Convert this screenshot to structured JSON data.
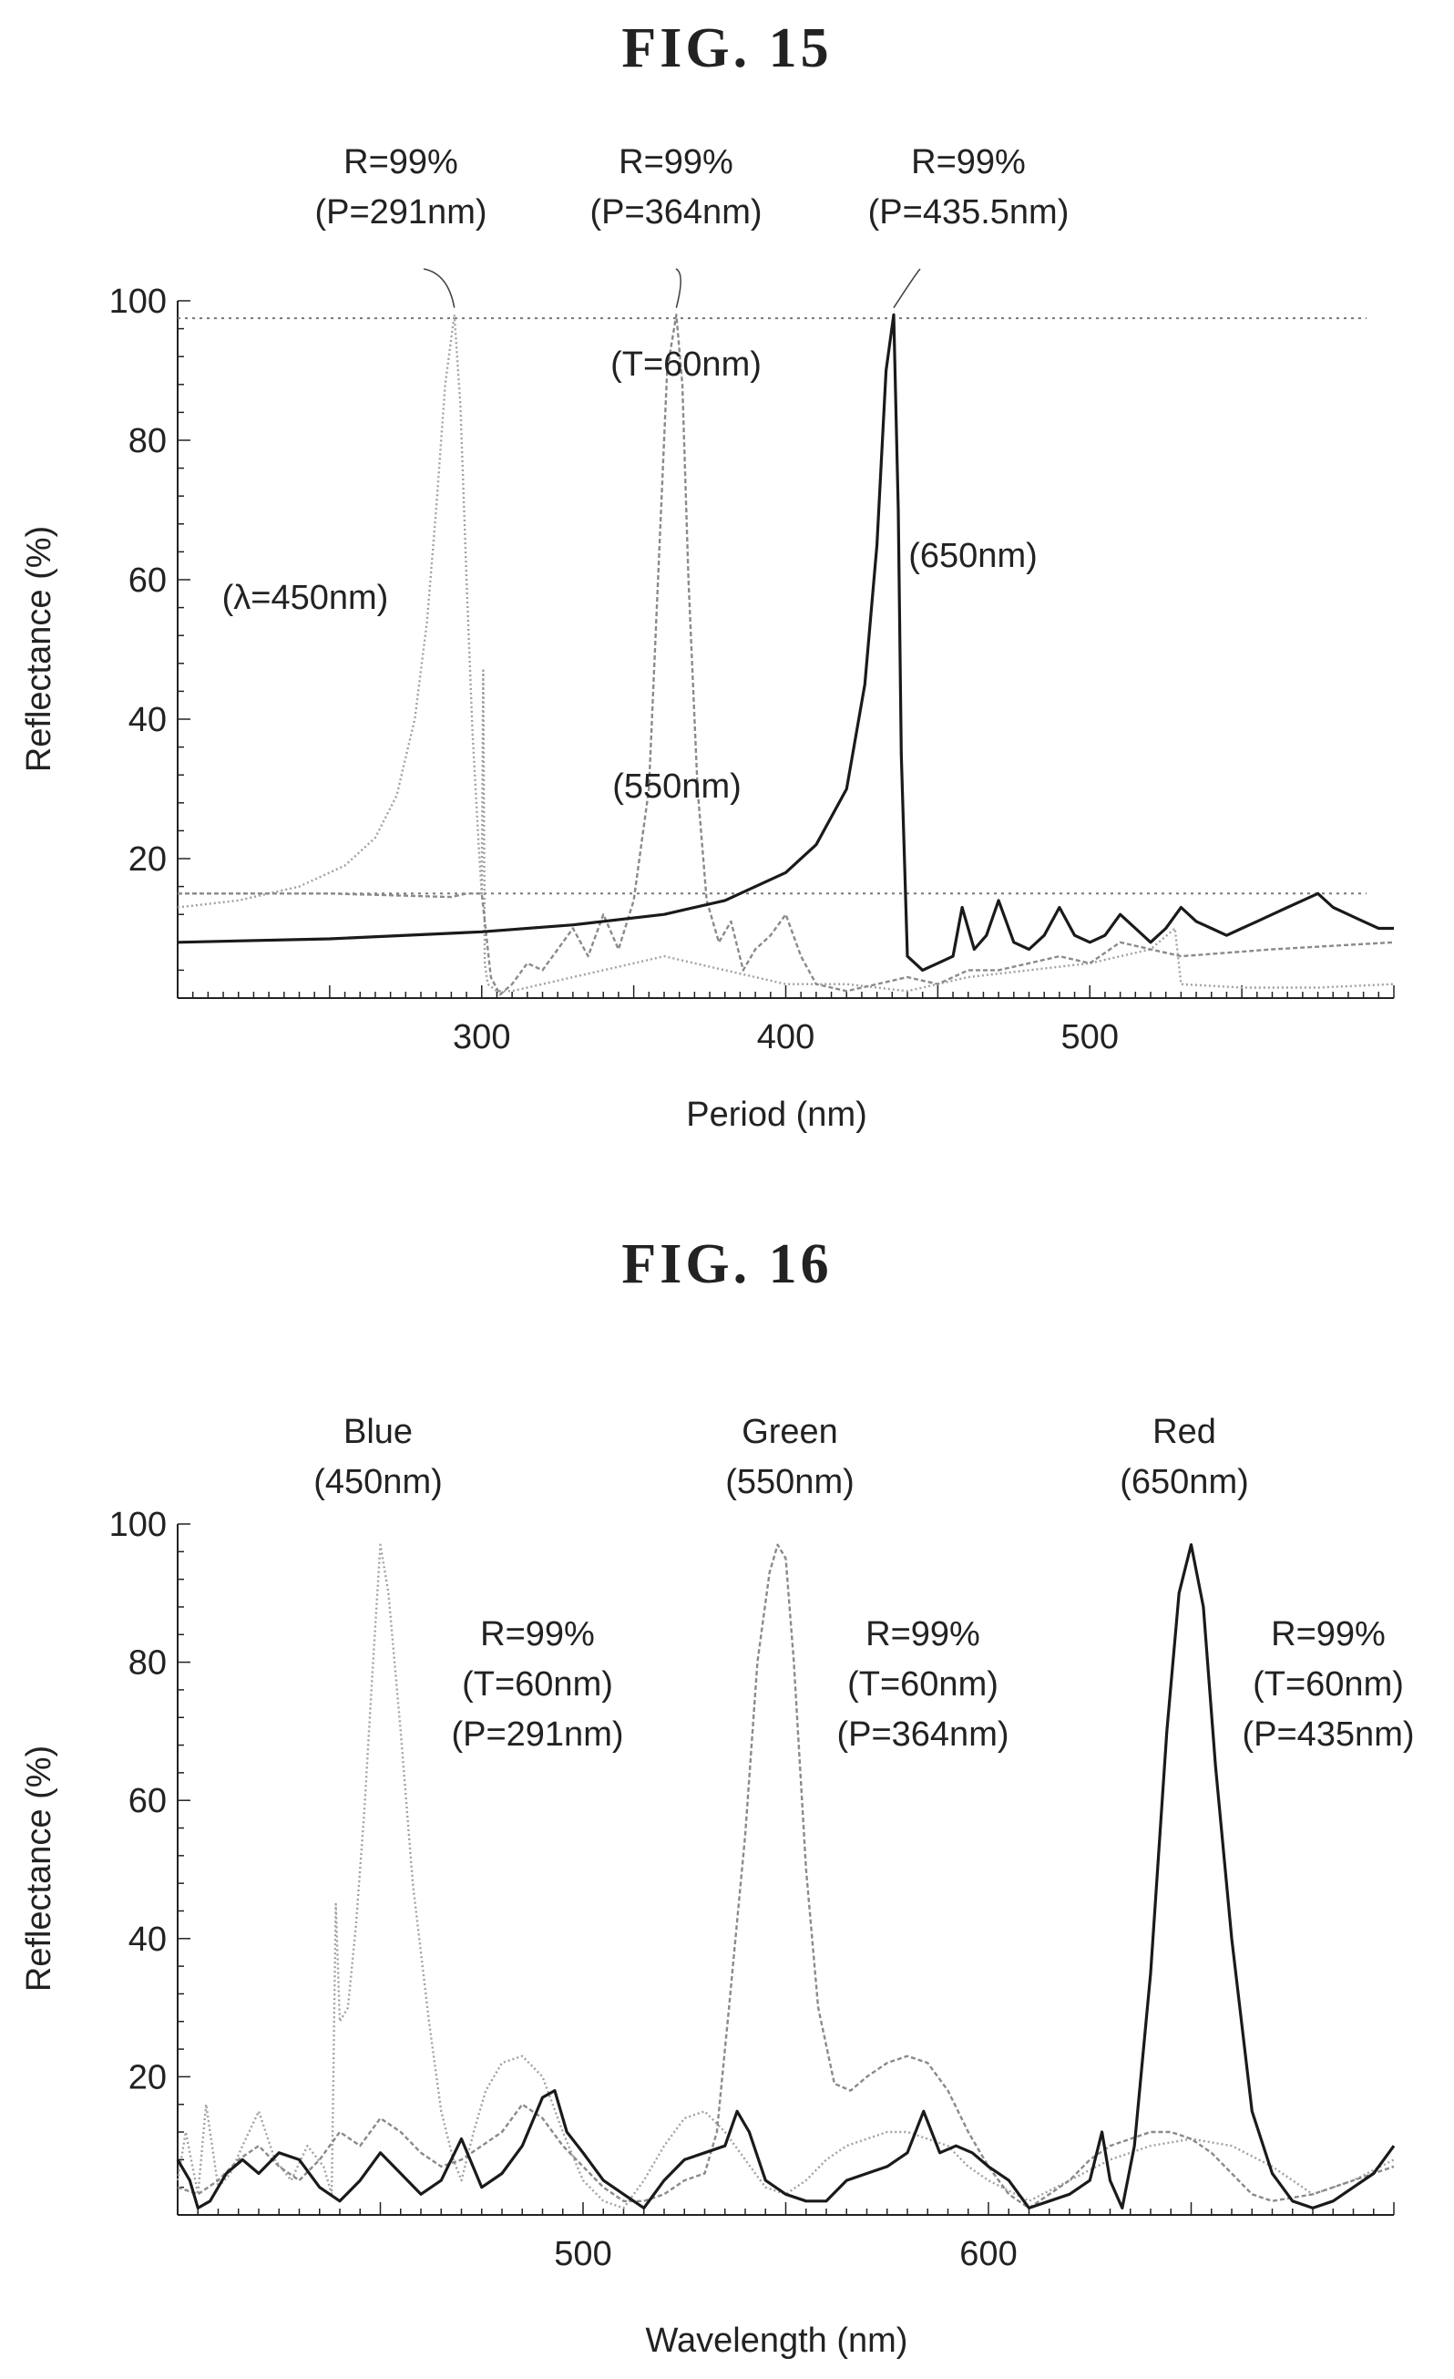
{
  "figures": {
    "fig15": {
      "title": "FIG.  15"
    },
    "fig16": {
      "title": "FIG.  16"
    }
  },
  "chart_data": [
    {
      "type": "line",
      "xlabel": "Period (nm)",
      "ylabel": "Reflectance (%)",
      "xlim": [
        200,
        600
      ],
      "ylim": [
        0,
        100
      ],
      "xticks": [
        300,
        400,
        500
      ],
      "yticks": [
        20,
        40,
        60,
        80,
        100
      ],
      "reference_lines": [
        {
          "y": 97.5,
          "style": "dotted"
        },
        {
          "y": 15,
          "style": "dotted"
        }
      ],
      "annotations": [
        {
          "text": "R=99%",
          "x": 291,
          "y": 99
        },
        {
          "text": "(P=291nm)",
          "x": 291,
          "y": 99
        },
        {
          "text": "R=99%",
          "x": 364,
          "y": 99
        },
        {
          "text": "(P=364nm)",
          "x": 364,
          "y": 99
        },
        {
          "text": "R=99%",
          "x": 435.5,
          "y": 99
        },
        {
          "text": "(P=435.5nm)",
          "x": 435.5,
          "y": 99
        },
        {
          "text": "(T=60nm)",
          "x": 364,
          "y": 88
        },
        {
          "text": "(λ=450nm)",
          "x": 250,
          "y": 57
        },
        {
          "text": "(550nm)",
          "x": 370,
          "y": 30
        },
        {
          "text": "(650nm)",
          "x": 460,
          "y": 62
        }
      ],
      "series": [
        {
          "name": "(λ=450nm)",
          "color": "#a0a0a0",
          "x": [
            200,
            220,
            240,
            255,
            265,
            272,
            278,
            282,
            285,
            288,
            291,
            293,
            295,
            297,
            299,
            300,
            300.5,
            301,
            302,
            305,
            310,
            320,
            330,
            340,
            350,
            360,
            370,
            380,
            390,
            400,
            420,
            440,
            460,
            480,
            500,
            520,
            528,
            530,
            550,
            575,
            600
          ],
          "y": [
            13,
            14,
            16,
            19,
            23,
            29,
            40,
            54,
            70,
            88,
            98,
            85,
            60,
            38,
            22,
            15,
            47,
            5,
            2,
            1,
            1,
            2,
            3,
            4,
            5,
            6,
            5,
            4,
            3,
            2,
            2,
            1,
            3,
            4,
            5,
            7,
            10,
            2,
            1.5,
            1.5,
            2
          ]
        },
        {
          "name": "(550nm)",
          "color": "#8a8a8a",
          "x": [
            200,
            250,
            290,
            295,
            300,
            303,
            306,
            310,
            315,
            320,
            325,
            330,
            335,
            340,
            345,
            350,
            355,
            358,
            361,
            364,
            366,
            368,
            371,
            374,
            378,
            382,
            386,
            390,
            395,
            400,
            405,
            410,
            420,
            430,
            440,
            450,
            460,
            470,
            480,
            490,
            500,
            510,
            520,
            530,
            560,
            600
          ],
          "y": [
            15,
            15,
            14.5,
            15,
            15,
            3,
            0.5,
            2,
            5,
            4,
            7,
            10,
            6,
            12,
            7,
            14,
            30,
            60,
            90,
            98,
            88,
            60,
            30,
            14,
            8,
            11,
            4,
            7,
            9,
            12,
            6,
            2,
            1,
            2,
            3,
            2,
            4,
            4,
            5,
            6,
            5,
            8,
            7,
            6,
            7,
            8
          ]
        },
        {
          "name": "(650nm)",
          "color": "#1a1a1a",
          "x": [
            200,
            250,
            300,
            330,
            360,
            380,
            400,
            410,
            420,
            426,
            430,
            433,
            435.5,
            437,
            438,
            440,
            445,
            450,
            455,
            458,
            462,
            466,
            470,
            475,
            480,
            485,
            490,
            495,
            500,
            505,
            510,
            515,
            520,
            525,
            530,
            535,
            540,
            545,
            550,
            555,
            560,
            565,
            570,
            575,
            580,
            585,
            590,
            595,
            600
          ],
          "y": [
            8,
            8.5,
            9.5,
            10.5,
            12,
            14,
            18,
            22,
            30,
            45,
            65,
            90,
            98,
            70,
            35,
            6,
            4,
            5,
            6,
            13,
            7,
            9,
            14,
            8,
            7,
            9,
            13,
            9,
            8,
            9,
            12,
            10,
            8,
            10,
            13,
            11,
            10,
            9,
            10,
            11,
            12,
            13,
            14,
            15,
            13,
            12,
            11,
            10,
            10
          ]
        }
      ]
    },
    {
      "type": "line",
      "xlabel": "Wavelength (nm)",
      "ylabel": "Reflectance (%)",
      "xlim": [
        400,
        700
      ],
      "ylim": [
        0,
        100
      ],
      "xticks": [
        500,
        600
      ],
      "yticks": [
        20,
        40,
        60,
        80,
        100
      ],
      "annotations": [
        {
          "text": "Blue",
          "x": 450,
          "y": 99
        },
        {
          "text": "(450nm)",
          "x": 450,
          "y": 99
        },
        {
          "text": "Green",
          "x": 550,
          "y": 99
        },
        {
          "text": "(550nm)",
          "x": 550,
          "y": 99
        },
        {
          "text": "Red",
          "x": 650,
          "y": 99
        },
        {
          "text": "(650nm)",
          "x": 650,
          "y": 99
        },
        {
          "text": "R=99%",
          "x": 475,
          "y": 80
        },
        {
          "text": "(T=60nm)",
          "x": 475,
          "y": 70
        },
        {
          "text": "(P=291nm)",
          "x": 475,
          "y": 60
        },
        {
          "text": "R=99%",
          "x": 570,
          "y": 80
        },
        {
          "text": "(T=60nm)",
          "x": 570,
          "y": 70
        },
        {
          "text": "(P=364nm)",
          "x": 570,
          "y": 60
        },
        {
          "text": "R=99%",
          "x": 672,
          "y": 80
        },
        {
          "text": "(T=60nm)",
          "x": 672,
          "y": 70
        },
        {
          "text": "(P=435nm)",
          "x": 672,
          "y": 60
        }
      ],
      "series": [
        {
          "name": "Blue (450nm)",
          "color": "#a0a0a0",
          "x": [
            400,
            402,
            405,
            407,
            410,
            413,
            416,
            420,
            424,
            428,
            432,
            436,
            438,
            439,
            440,
            442,
            444,
            446,
            448,
            450,
            452,
            455,
            458,
            462,
            465,
            468,
            470,
            473,
            476,
            480,
            485,
            490,
            495,
            500,
            505,
            510,
            515,
            520,
            525,
            530,
            535,
            540,
            545,
            550,
            555,
            560,
            565,
            570,
            575,
            580,
            585,
            590,
            595,
            600,
            610,
            620,
            630,
            640,
            650,
            660,
            670,
            680,
            690,
            700
          ],
          "y": [
            5,
            12,
            3,
            16,
            4,
            6,
            10,
            15,
            8,
            5,
            10,
            7,
            3,
            45,
            28,
            30,
            42,
            58,
            78,
            97,
            90,
            70,
            48,
            28,
            15,
            8,
            5,
            12,
            18,
            22,
            23,
            20,
            12,
            5,
            2,
            1,
            5,
            10,
            14,
            15,
            12,
            8,
            4,
            3,
            5,
            8,
            10,
            11,
            12,
            12,
            11,
            10,
            7,
            5,
            2,
            5,
            8,
            10,
            11,
            10,
            7,
            3,
            5,
            8
          ]
        },
        {
          "name": "Green (550nm)",
          "color": "#8a8a8a",
          "x": [
            400,
            405,
            410,
            415,
            420,
            425,
            430,
            435,
            440,
            445,
            450,
            455,
            460,
            465,
            470,
            475,
            480,
            485,
            490,
            495,
            500,
            505,
            510,
            515,
            520,
            525,
            530,
            533,
            536,
            540,
            543,
            546,
            548,
            550,
            552,
            555,
            558,
            562,
            566,
            570,
            575,
            580,
            585,
            590,
            595,
            600,
            605,
            610,
            615,
            620,
            625,
            630,
            635,
            640,
            645,
            650,
            655,
            660,
            665,
            670,
            680,
            690,
            700
          ],
          "y": [
            4,
            3,
            5,
            8,
            10,
            7,
            5,
            8,
            12,
            10,
            14,
            12,
            9,
            7,
            8,
            10,
            12,
            16,
            14,
            10,
            7,
            4,
            2,
            2,
            3,
            5,
            6,
            12,
            30,
            55,
            80,
            93,
            97,
            95,
            80,
            50,
            30,
            19,
            18,
            20,
            22,
            23,
            22,
            18,
            12,
            7,
            3,
            1,
            3,
            5,
            8,
            10,
            11,
            12,
            12,
            11,
            9,
            6,
            3,
            2,
            3,
            5,
            7
          ]
        },
        {
          "name": "Red (650nm)",
          "color": "#1a1a1a",
          "x": [
            400,
            403,
            405,
            408,
            412,
            416,
            420,
            425,
            430,
            435,
            440,
            445,
            450,
            455,
            460,
            465,
            470,
            475,
            480,
            485,
            490,
            493,
            496,
            500,
            505,
            510,
            515,
            520,
            525,
            530,
            535,
            538,
            541,
            545,
            550,
            555,
            560,
            565,
            570,
            575,
            580,
            584,
            588,
            592,
            596,
            600,
            605,
            610,
            615,
            620,
            625,
            628,
            630,
            633,
            636,
            640,
            644,
            647,
            650,
            653,
            656,
            660,
            665,
            670,
            675,
            680,
            685,
            690,
            695,
            700
          ],
          "y": [
            8,
            5,
            1,
            2,
            6,
            8,
            6,
            9,
            8,
            4,
            2,
            5,
            9,
            6,
            3,
            5,
            11,
            4,
            6,
            10,
            17,
            18,
            12,
            9,
            5,
            3,
            1,
            5,
            8,
            9,
            10,
            15,
            12,
            5,
            3,
            2,
            2,
            5,
            6,
            7,
            9,
            15,
            9,
            10,
            9,
            7,
            5,
            1,
            2,
            3,
            5,
            12,
            5,
            1,
            10,
            35,
            70,
            90,
            97,
            88,
            65,
            40,
            15,
            6,
            2,
            1,
            2,
            4,
            6,
            10
          ]
        }
      ]
    }
  ]
}
